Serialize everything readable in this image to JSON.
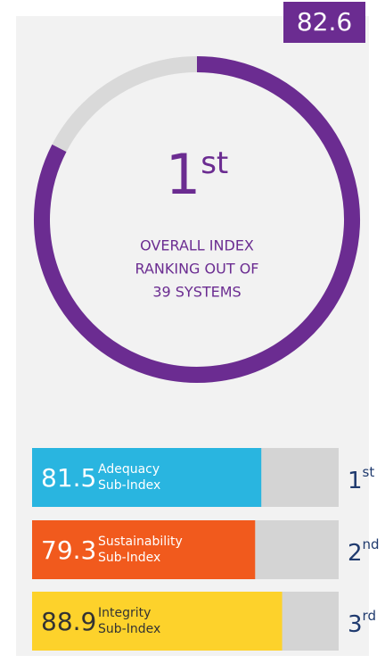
{
  "chart_data": [
    {
      "type": "donut",
      "value": 82.6,
      "range": [
        0,
        100
      ],
      "color": "#6b2c91",
      "track_color": "#d9d9d9",
      "rank": "1",
      "rank_suffix": "st",
      "caption": [
        "OVERALL INDEX",
        "RANKING OUT OF",
        "39 SYSTEMS"
      ]
    },
    {
      "type": "bar",
      "xlim": [
        0,
        109
      ],
      "track_color": "#d4d4d4",
      "rank_color": "#1f3a6e",
      "series": [
        {
          "name": [
            "Adequacy",
            "Sub-Index"
          ],
          "value": 81.5,
          "color": "#29b5e0",
          "text_color": "#ffffff",
          "rank": "1",
          "rank_suffix": "st"
        },
        {
          "name": [
            "Sustainability",
            "Sub-Index"
          ],
          "value": 79.3,
          "color": "#f15a1d",
          "text_color": "#ffffff",
          "rank": "2",
          "rank_suffix": "nd"
        },
        {
          "name": [
            "Integrity",
            "Sub-Index"
          ],
          "value": 88.9,
          "color": "#fdd22b",
          "text_color": "#333333",
          "rank": "3",
          "rank_suffix": "rd"
        }
      ]
    }
  ]
}
